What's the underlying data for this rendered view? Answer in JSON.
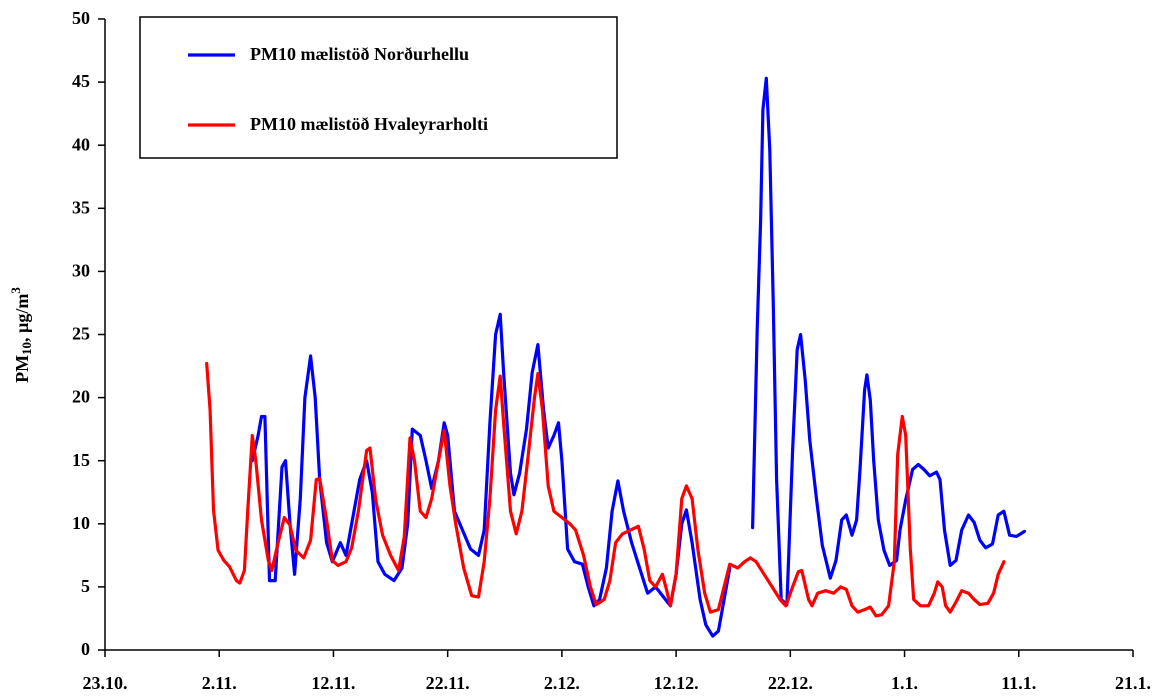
{
  "chart_data": {
    "type": "line",
    "y_label": [
      "PM",
      "10",
      ", µg/m",
      "3"
    ],
    "xlim": [
      0,
      90
    ],
    "xticks": [
      {
        "value": 0,
        "label": "23.10."
      },
      {
        "value": 10,
        "label": "2.11."
      },
      {
        "value": 20,
        "label": "12.11."
      },
      {
        "value": 30,
        "label": "22.11."
      },
      {
        "value": 40,
        "label": "2.12."
      },
      {
        "value": 50,
        "label": "12.12."
      },
      {
        "value": 60,
        "label": "22.12."
      },
      {
        "value": 70,
        "label": "1.1."
      },
      {
        "value": 80,
        "label": "11.1."
      },
      {
        "value": 90,
        "label": "21.1."
      }
    ],
    "ylim": [
      0,
      50
    ],
    "yticks": [
      0,
      5,
      10,
      15,
      20,
      25,
      30,
      35,
      40,
      45,
      50
    ],
    "grid": false,
    "legend": "top-left",
    "series": [
      {
        "name": "PM10 mælistöð Norðurhellu",
        "color": "#0000ff",
        "x": [
          12.9,
          13.4,
          13.7,
          14.0,
          14.4,
          14.9,
          15.5,
          15.8,
          16.2,
          16.6,
          17.1,
          17.5,
          18.0,
          18.4,
          18.8,
          19.4,
          19.9,
          20.6,
          21.1,
          21.6,
          22.3,
          22.9,
          23.4,
          23.9,
          24.5,
          25.3,
          26.0,
          26.5,
          26.9,
          27.6,
          28.1,
          28.6,
          29.2,
          29.7,
          30.0,
          30.6,
          31.3,
          32.0,
          32.7,
          33.2,
          33.7,
          34.2,
          34.6,
          34.9,
          35.5,
          35.8,
          36.3,
          36.9,
          37.4,
          37.9,
          38.4,
          38.8,
          39.3,
          39.7,
          40.0,
          40.5,
          41.1,
          41.8,
          42.3,
          42.8,
          43.3,
          43.9,
          44.4,
          44.9,
          45.4,
          46.1,
          46.8,
          47.5,
          48.2,
          48.9,
          49.5,
          50.0,
          50.5,
          50.9,
          51.4,
          52.1,
          52.6,
          53.2,
          53.7,
          54.2,
          54.7,
          56.0,
          56.7,
          57.1,
          57.4,
          57.6,
          57.9,
          58.2,
          58.5,
          58.8,
          59.2,
          59.7,
          60.2,
          60.6,
          60.9,
          61.3,
          61.7,
          62.3,
          62.8,
          63.5,
          64.0,
          64.5,
          64.9,
          65.4,
          65.8,
          66.1,
          66.5,
          66.7,
          67.0,
          67.3,
          67.7,
          68.2,
          68.7,
          69.3,
          69.6,
          70.1,
          70.7,
          71.2,
          71.7,
          72.2,
          72.8,
          73.1,
          73.5,
          74.0,
          74.5,
          75.0,
          75.6,
          76.1,
          76.6,
          77.1,
          77.7,
          78.2,
          78.7,
          79.2,
          79.8,
          80.5
        ],
        "values": [
          15,
          17,
          18.5,
          18.5,
          5.5,
          5.5,
          14.5,
          15,
          10,
          6,
          12,
          20,
          23.3,
          20,
          13.5,
          8.5,
          7,
          8.5,
          7.5,
          10,
          13.5,
          15,
          12.5,
          7,
          6,
          5.5,
          6.5,
          10,
          17.5,
          17,
          15,
          12.8,
          15,
          18,
          17,
          11,
          9.5,
          8,
          7.5,
          9.5,
          18,
          25,
          26.6,
          22,
          14,
          12.3,
          14,
          17.5,
          22,
          24.2,
          19,
          16,
          17,
          18,
          15,
          8,
          7,
          6.8,
          5,
          3.5,
          4,
          6.5,
          11,
          13.4,
          11,
          8.5,
          6.5,
          4.5,
          5,
          4.2,
          3.5,
          6,
          10,
          11.1,
          8.5,
          4,
          2,
          1.1,
          1.5,
          4,
          6.5,
          null,
          9.7,
          25.4,
          34,
          42.8,
          45.3,
          39.6,
          27.7,
          13.5,
          4,
          3.6,
          15.8,
          23.8,
          25,
          21.4,
          16.6,
          11.9,
          8.3,
          5.7,
          7.1,
          10.3,
          10.7,
          9.1,
          10.3,
          14.3,
          20.6,
          21.8,
          19.8,
          15,
          10.3,
          7.9,
          6.7,
          7.1,
          9.5,
          11.9,
          14.3,
          14.7,
          14.3,
          13.8,
          14.1,
          13.5,
          9.5,
          6.7,
          7.1,
          9.5,
          10.7,
          10.1,
          8.7,
          8.1,
          8.4,
          10.7,
          11,
          9.1,
          9,
          9.4
        ]
      },
      {
        "name": "PM10 mælistöð Hvaleyrarholti",
        "color": "#ff0000",
        "x": [
          8.9,
          9.2,
          9.5,
          9.9,
          10.4,
          10.9,
          11.5,
          11.8,
          12.2,
          12.5,
          12.9,
          13.2,
          13.7,
          14.3,
          14.6,
          15.1,
          15.7,
          16.2,
          16.7,
          17.4,
          18.0,
          18.5,
          18.8,
          19.4,
          19.9,
          20.4,
          21.1,
          21.6,
          22.2,
          22.9,
          23.2,
          23.7,
          24.3,
          25.0,
          25.7,
          26.2,
          26.7,
          27.1,
          27.6,
          28.1,
          28.6,
          29.2,
          29.7,
          30.2,
          30.7,
          31.4,
          32.1,
          32.7,
          33.2,
          33.7,
          34.2,
          34.6,
          34.9,
          35.5,
          36.0,
          36.5,
          37.0,
          37.6,
          37.9,
          38.3,
          38.8,
          39.3,
          40.0,
          40.7,
          41.2,
          41.9,
          42.5,
          43.0,
          43.7,
          44.2,
          44.7,
          45.3,
          46.0,
          46.7,
          47.2,
          47.7,
          48.2,
          48.8,
          49.1,
          49.5,
          50.0,
          50.5,
          50.9,
          51.4,
          51.9,
          52.5,
          53.0,
          53.7,
          54.2,
          54.7,
          55.4,
          56.0,
          56.5,
          57.0,
          57.7,
          58.4,
          59.1,
          59.6,
          60.2,
          60.7,
          61.0,
          61.6,
          61.9,
          62.4,
          63.1,
          63.8,
          64.4,
          64.9,
          65.4,
          65.9,
          66.5,
          67.0,
          67.5,
          68.0,
          68.6,
          69.1,
          69.4,
          69.8,
          70.1,
          70.5,
          70.8,
          71.4,
          72.1,
          72.6,
          72.9,
          73.3,
          73.6,
          74.0,
          74.5,
          75.0,
          75.6,
          76.1,
          76.6,
          77.3,
          77.8,
          78.2,
          78.7
        ],
        "values": [
          22.7,
          19,
          11.1,
          7.9,
          7.1,
          6.6,
          5.5,
          5.3,
          6.3,
          11.1,
          17,
          15,
          10.3,
          7.1,
          6.3,
          8.3,
          10.5,
          9.9,
          7.9,
          7.3,
          8.7,
          13.5,
          13.6,
          10.3,
          7.1,
          6.7,
          7,
          8.1,
          11.1,
          15.8,
          16,
          11.9,
          9.1,
          7.5,
          6.3,
          9,
          16.8,
          15,
          11,
          10.5,
          12,
          15,
          17.4,
          13,
          10,
          6.5,
          4.3,
          4.2,
          7,
          12,
          19,
          21.7,
          18,
          11,
          9.2,
          11,
          15,
          20,
          21.9,
          19,
          13,
          11,
          10.5,
          10,
          9.5,
          7.5,
          5,
          3.6,
          4,
          5.5,
          8.5,
          9.2,
          9.5,
          9.8,
          8,
          5.5,
          5,
          6,
          5,
          3.5,
          6,
          12,
          13,
          12,
          8,
          4.5,
          3,
          3.2,
          5,
          6.8,
          6.5,
          7,
          7.3,
          7,
          6,
          5,
          4,
          3.5,
          5,
          6.2,
          6.3,
          4,
          3.5,
          4.5,
          4.7,
          4.5,
          5,
          4.8,
          3.5,
          3,
          3.2,
          3.4,
          2.7,
          2.8,
          3.5,
          7,
          15.5,
          18.5,
          17,
          8,
          4,
          3.5,
          3.5,
          4.5,
          5.4,
          5,
          3.5,
          3,
          3.8,
          4.7,
          4.5,
          4,
          3.6,
          3.7,
          4.5,
          6,
          7
        ]
      }
    ]
  }
}
